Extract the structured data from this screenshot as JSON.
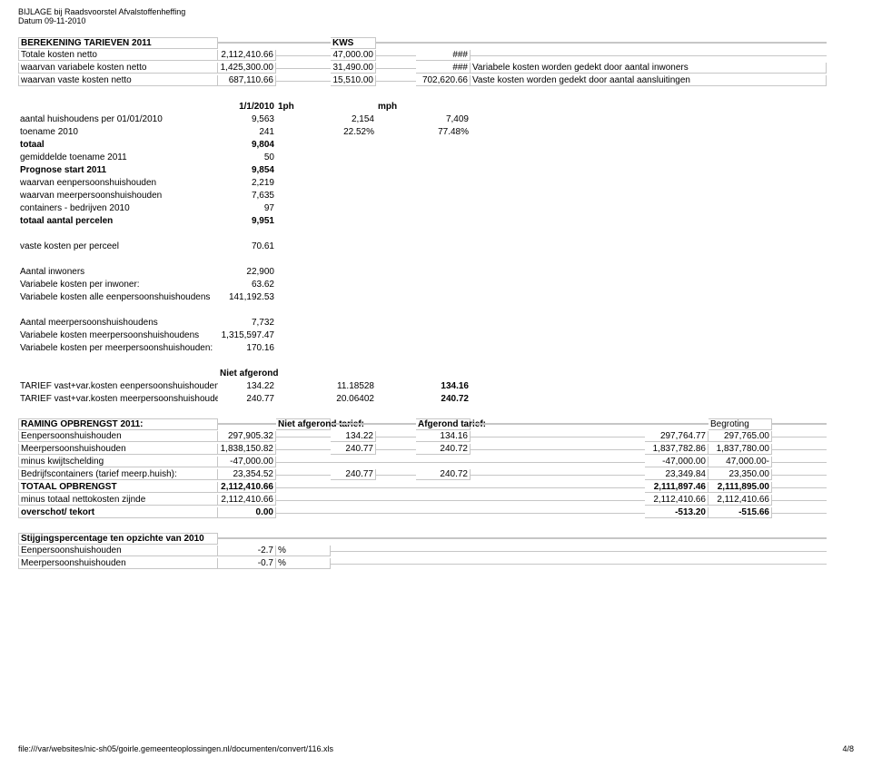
{
  "header": {
    "line1": "BIJLAGE bij Raadsvoorstel Afvalstoffenheffing",
    "line2": "Datum 09-11-2010"
  },
  "rows": {
    "r1": {
      "c0": "BEREKENING TARIEVEN 2011",
      "c3": "KWS"
    },
    "r2": {
      "c0": "Totale kosten netto",
      "c1": "2,112,410.66",
      "c3": "47,000.00",
      "c5": "###"
    },
    "r3": {
      "c0": "waarvan variabele kosten netto",
      "c1": "1,425,300.00",
      "c3": "31,490.00",
      "c5": "###",
      "c6": "Variabele kosten worden gedekt door aantal inwoners"
    },
    "r4": {
      "c0": "waarvan vaste kosten netto",
      "c1": "687,110.66",
      "c3": "15,510.00",
      "c5": "702,620.66",
      "c6": "Vaste kosten worden gedekt door aantal aansluitingen"
    },
    "r5": {
      "c1": "1/1/2010",
      "c2": "1ph",
      "c4": "mph"
    },
    "r6": {
      "c0": "aantal huishoudens per 01/01/2010",
      "c1": "9,563",
      "c3": "2,154",
      "c5": "7,409"
    },
    "r7": {
      "c0": "toename 2010",
      "c1": "241",
      "c3": "22.52%",
      "c5": "77.48%"
    },
    "r8": {
      "c0": "totaal",
      "c1": "9,804"
    },
    "r9": {
      "c0": "gemiddelde toename 2011",
      "c1": "50"
    },
    "r10": {
      "c0": "Prognose start 2011",
      "c1": "9,854"
    },
    "r11": {
      "c0": "waarvan eenpersoonshuishouden",
      "c1": "2,219"
    },
    "r12": {
      "c0": "waarvan meerpersoonshuishouden",
      "c1": "7,635"
    },
    "r13": {
      "c0": "containers - bedrijven 2010",
      "c1": "97"
    },
    "r14": {
      "c0": "totaal aantal percelen",
      "c1": "9,951"
    },
    "r15": {
      "c0": "vaste kosten per perceel",
      "c1": "70.61"
    },
    "r16": {
      "c0": "Aantal inwoners",
      "c1": "22,900"
    },
    "r17": {
      "c0": "Variabele kosten per inwoner:",
      "c1": "63.62"
    },
    "r18": {
      "c0": "Variabele kosten alle eenpersoonshuishoudens",
      "c1": "141,192.53"
    },
    "r19": {
      "c0": "Aantal meerpersoonshuishoudens",
      "c1": "7,732"
    },
    "r20": {
      "c0": "Variabele kosten meerpersoonshuishoudens",
      "c1": "1,315,597.47"
    },
    "r21": {
      "c0": "Variabele kosten per meerpersoonshuishouden:",
      "c1": "170.16"
    },
    "r22": {
      "c1": "Niet afgerond"
    },
    "r23": {
      "c0": "TARIEF vast+var.kosten eenpersoonshuishouden",
      "c1": "134.22",
      "c3": "11.18528",
      "c5": "134.16"
    },
    "r24": {
      "c0": "TARIEF vast+var.kosten meerpersoonshuishouden",
      "c1": "240.77",
      "c3": "20.06402",
      "c5": "240.72"
    },
    "r25": {
      "c0": "RAMING OPBRENGST 2011:",
      "c2": "Niet afgerond tarief:",
      "c5": "Afgerond tarief:",
      "c11": "Begroting"
    },
    "r26": {
      "c0": "Eenpersoonshuishouden",
      "c1": "297,905.32",
      "c3": "134.22",
      "c5": "134.16",
      "c10": "297,764.77",
      "c11": "297,765.00"
    },
    "r27": {
      "c0": "Meerpersoonshuishouden",
      "c1": "1,838,150.82",
      "c3": "240.77",
      "c5": "240.72",
      "c10": "1,837,782.86",
      "c11": "1,837,780.00"
    },
    "r28": {
      "c0": "minus kwijtschelding",
      "c1": "-47,000.00",
      "c10": "-47,000.00",
      "c11": "47,000.00-"
    },
    "r29": {
      "c0": "Bedrijfscontainers (tarief meerp.huish):",
      "c1": "23,354.52",
      "c3": "240.77",
      "c5": "240.72",
      "c10": "23,349.84",
      "c11": "23,350.00"
    },
    "r30": {
      "c0": "TOTAAL OPBRENGST",
      "c1": "2,112,410.66",
      "c10": "2,111,897.46",
      "c11": "2,111,895.00"
    },
    "r31": {
      "c0": "minus totaal nettokosten zijnde",
      "c1": "2,112,410.66",
      "c10": "2,112,410.66",
      "c11": "2,112,410.66"
    },
    "r32": {
      "c0": "overschot/ tekort",
      "c1": "0.00",
      "c10": "-513.20",
      "c11": "-515.66"
    },
    "r33": {
      "c0": "Stijgingspercentage ten opzichte van 2010"
    },
    "r34": {
      "c0": "Eenpersoonshuishouden",
      "c1": "-2.7",
      "c2": "%"
    },
    "r35": {
      "c0": "Meerpersoonshuishouden",
      "c1": "-0.7",
      "c2": "%"
    }
  },
  "footer": {
    "path": "file:///var/websites/nic-sh05/goirle.gemeenteoplossingen.nl/documenten/convert/116.xls",
    "pager": "4/8"
  }
}
